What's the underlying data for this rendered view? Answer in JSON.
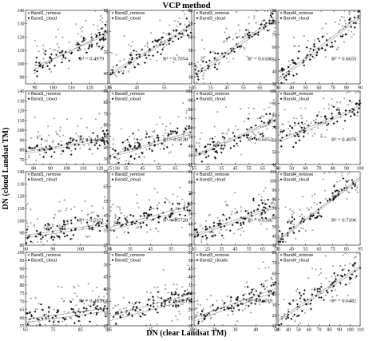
{
  "title": "VCP method",
  "ylabel": "DN (cloud Landsat TM)",
  "xlabel": "DN (clear Landsat TM)",
  "colors": {
    "remove": "#888888",
    "cloud": "#111111",
    "trend": "#8a8a8a"
  },
  "chart_data": [
    {
      "type": "scatter",
      "xlim": [
        85,
        130
      ],
      "ylim": [
        85,
        140
      ],
      "xticks": [
        90,
        100,
        110,
        120,
        130
      ],
      "yticks": [
        90,
        100,
        110,
        120,
        130,
        140
      ],
      "legend": [
        "Band1_remove",
        "Band1_cloud"
      ],
      "r2": "R² = 0.4979",
      "cloud_trend": [
        [
          90,
          98
        ],
        [
          130,
          122
        ]
      ],
      "remove_trend": [
        [
          90,
          96
        ],
        [
          130,
          124
        ]
      ]
    },
    {
      "type": "scatter",
      "xlim": [
        35,
        65
      ],
      "ylim": [
        35,
        70
      ],
      "xticks": [
        35,
        45,
        55,
        65
      ],
      "yticks": [
        40,
        50,
        60,
        70
      ],
      "legend": [
        "Band2_remove",
        "Band2_cloud"
      ],
      "r2": "R² = 0.7054",
      "cloud_trend": [
        [
          35,
          40
        ],
        [
          65,
          63
        ]
      ],
      "remove_trend": [
        [
          35,
          39
        ],
        [
          65,
          62
        ]
      ]
    },
    {
      "type": "scatter",
      "xlim": [
        25,
        75
      ],
      "ylim": [
        25,
        80
      ],
      "xticks": [
        25,
        35,
        45,
        55,
        65,
        75
      ],
      "yticks": [
        30,
        40,
        50,
        60,
        70,
        80
      ],
      "legend": [
        "Band3_remove",
        "Band3_cloud"
      ],
      "r2": "R² = 0.6186",
      "cloud_trend": [
        [
          25,
          32
        ],
        [
          75,
          75
        ]
      ],
      "remove_trend": [
        [
          25,
          30
        ],
        [
          75,
          73
        ]
      ]
    },
    {
      "type": "scatter",
      "xlim": [
        30,
        90
      ],
      "ylim": [
        30,
        90
      ],
      "xticks": [
        30,
        40,
        50,
        60,
        70,
        80,
        90
      ],
      "yticks": [
        30,
        40,
        50,
        60,
        70,
        80,
        90
      ],
      "legend": [
        "Band4_remove",
        "Band4_cloud"
      ],
      "r2": "R² = 0.6655",
      "cloud_trend": [
        [
          30,
          34
        ],
        [
          90,
          86
        ]
      ],
      "remove_trend": [
        [
          30,
          32
        ],
        [
          90,
          84
        ]
      ]
    },
    {
      "type": "scatter",
      "xlim": [
        75,
        125
      ],
      "ylim": [
        65,
        140
      ],
      "xticks": [
        80,
        90,
        100,
        110,
        120,
        130
      ],
      "yticks": [
        70,
        80,
        90,
        100,
        110,
        120,
        130,
        140
      ],
      "legend": [
        "Band1_remove",
        "Band1_cloud"
      ],
      "r2": "R² = 0.4743",
      "cloud_trend": [
        [
          75,
          78
        ],
        [
          125,
          92
        ]
      ],
      "remove_trend": [
        [
          75,
          76
        ],
        [
          125,
          90
        ]
      ]
    },
    {
      "type": "scatter",
      "xlim": [
        25,
        75
      ],
      "ylim": [
        25,
        90
      ],
      "xticks": [
        25,
        35,
        45,
        55,
        65,
        75
      ],
      "yticks": [
        30,
        40,
        50,
        60,
        70,
        80,
        90
      ],
      "legend": [
        "Band2_remove",
        "Band2_cloud"
      ],
      "r2": "R² = 0.5128",
      "cloud_trend": [
        [
          25,
          33
        ],
        [
          75,
          54
        ]
      ],
      "remove_trend": [
        [
          25,
          31
        ],
        [
          75,
          52
        ]
      ]
    },
    {
      "type": "scatter",
      "xlim": [
        15,
        75
      ],
      "ylim": [
        20,
        100
      ],
      "xticks": [
        15,
        25,
        35,
        45,
        55,
        65,
        75
      ],
      "yticks": [
        20,
        30,
        40,
        50,
        60,
        70,
        80,
        90,
        100
      ],
      "legend": [
        "Band3_remove",
        "Band3_cloud"
      ],
      "r2": "R² = 0.6052",
      "cloud_trend": [
        [
          15,
          30
        ],
        [
          75,
          70
        ]
      ],
      "remove_trend": [
        [
          15,
          28
        ],
        [
          75,
          68
        ]
      ]
    },
    {
      "type": "scatter",
      "xlim": [
        40,
        100
      ],
      "ylim": [
        40,
        100
      ],
      "xticks": [
        40,
        50,
        60,
        70,
        80,
        90,
        100
      ],
      "yticks": [
        40,
        50,
        60,
        70,
        80,
        90,
        100
      ],
      "legend": [
        "Band4_remove",
        "Band4_cloud"
      ],
      "r2": "R² = 0.4076",
      "cloud_trend": [
        [
          40,
          60
        ],
        [
          100,
          88
        ]
      ],
      "remove_trend": [
        [
          40,
          58
        ],
        [
          100,
          86
        ]
      ]
    },
    {
      "type": "scatter",
      "xlim": [
        80,
        110
      ],
      "ylim": [
        80,
        140
      ],
      "xticks": [
        80,
        90,
        100,
        110
      ],
      "yticks": [
        80,
        90,
        100,
        110,
        120,
        130,
        140
      ],
      "legend": [
        "Band1_remove",
        "Band1_cloud"
      ],
      "r2": "R² = 0.5321",
      "cloud_trend": [
        [
          80,
          88
        ],
        [
          110,
          98
        ]
      ],
      "remove_trend": [
        [
          80,
          86
        ],
        [
          110,
          96
        ]
      ]
    },
    {
      "type": "scatter",
      "xlim": [
        25,
        65
      ],
      "ylim": [
        25,
        75
      ],
      "xticks": [
        25,
        35,
        45,
        55,
        65
      ],
      "yticks": [
        25,
        35,
        45,
        55,
        65,
        75
      ],
      "legend": [
        "Band2_remove",
        "Band2_cloud"
      ],
      "r2": "R² = 0.5728",
      "cloud_trend": [
        [
          25,
          37
        ],
        [
          65,
          52
        ]
      ],
      "remove_trend": [
        [
          25,
          35
        ],
        [
          65,
          50
        ]
      ]
    },
    {
      "type": "scatter",
      "xlim": [
        15,
        75
      ],
      "ylim": [
        20,
        90
      ],
      "xticks": [
        15,
        25,
        35,
        45,
        55,
        65,
        75
      ],
      "yticks": [
        20,
        30,
        40,
        50,
        60,
        70,
        80,
        90
      ],
      "legend": [
        "Band3_remove",
        "Band3_cloud"
      ],
      "r2": "R² = 0.6366",
      "cloud_trend": [
        [
          15,
          30
        ],
        [
          75,
          58
        ]
      ],
      "remove_trend": [
        [
          15,
          28
        ],
        [
          75,
          56
        ]
      ]
    },
    {
      "type": "scatter",
      "xlim": [
        35,
        95
      ],
      "ylim": [
        30,
        110
      ],
      "xticks": [
        35,
        45,
        55,
        65,
        75,
        85,
        95
      ],
      "yticks": [
        30,
        40,
        50,
        60,
        70,
        80,
        90,
        100,
        110
      ],
      "legend": [
        "Band4_remove",
        "Band4_cloud"
      ],
      "r2": "R² = 0.7106",
      "cloud_trend": [
        [
          35,
          36
        ],
        [
          95,
          104
        ]
      ],
      "remove_trend": [
        [
          35,
          34
        ],
        [
          95,
          102
        ]
      ]
    },
    {
      "type": "scatter",
      "xlim": [
        65,
        95
      ],
      "ylim": [
        55,
        100
      ],
      "xticks": [
        65,
        75,
        85,
        95
      ],
      "yticks": [
        55,
        60,
        65,
        70,
        75,
        80,
        85,
        90,
        95,
        100
      ],
      "legend": [
        "Band1_remove",
        "Band1_cloud"
      ],
      "r2": "R² = 0.4639",
      "cloud_trend": [
        [
          65,
          59
        ],
        [
          95,
          66
        ]
      ],
      "remove_trend": [
        [
          65,
          57
        ],
        [
          95,
          64
        ]
      ]
    },
    {
      "type": "scatter",
      "xlim": [
        25,
        45
      ],
      "ylim": [
        25,
        55
      ],
      "xticks": [
        25,
        35,
        45
      ],
      "yticks": [
        25,
        30,
        35,
        40,
        45,
        50,
        55
      ],
      "legend": [
        "Band2_remove",
        "Band2_cloud"
      ],
      "r2": "R² = 0.4521",
      "cloud_trend": [
        [
          25,
          29
        ],
        [
          45,
          38
        ]
      ],
      "remove_trend": [
        [
          25,
          27
        ],
        [
          45,
          36
        ]
      ]
    },
    {
      "type": "scatter",
      "xlim": [
        10,
        50
      ],
      "ylim": [
        10,
        55
      ],
      "xticks": [
        10,
        20,
        30,
        40,
        50
      ],
      "yticks": [
        10,
        15,
        20,
        25,
        30,
        35,
        40,
        45,
        50,
        55
      ],
      "legend": [
        "Band3_remove",
        "Band3_clouds"
      ],
      "r2": "R² = 0.6019",
      "cloud_trend": [
        [
          10,
          15
        ],
        [
          50,
          33
        ]
      ],
      "remove_trend": [
        [
          10,
          13
        ],
        [
          50,
          31
        ]
      ]
    },
    {
      "type": "scatter",
      "xlim": [
        30,
        110
      ],
      "ylim": [
        10,
        80
      ],
      "xticks": [
        30,
        40,
        50,
        60,
        70,
        80,
        90,
        100,
        110
      ],
      "yticks": [
        10,
        20,
        30,
        40,
        50,
        60,
        70,
        80
      ],
      "legend": [
        "Band4_remove",
        "Band4_cloud"
      ],
      "r2": "R² = 0.6482",
      "cloud_trend": [
        [
          30,
          16
        ],
        [
          110,
          67
        ]
      ],
      "remove_trend": [
        [
          30,
          14
        ],
        [
          110,
          65
        ]
      ]
    }
  ]
}
